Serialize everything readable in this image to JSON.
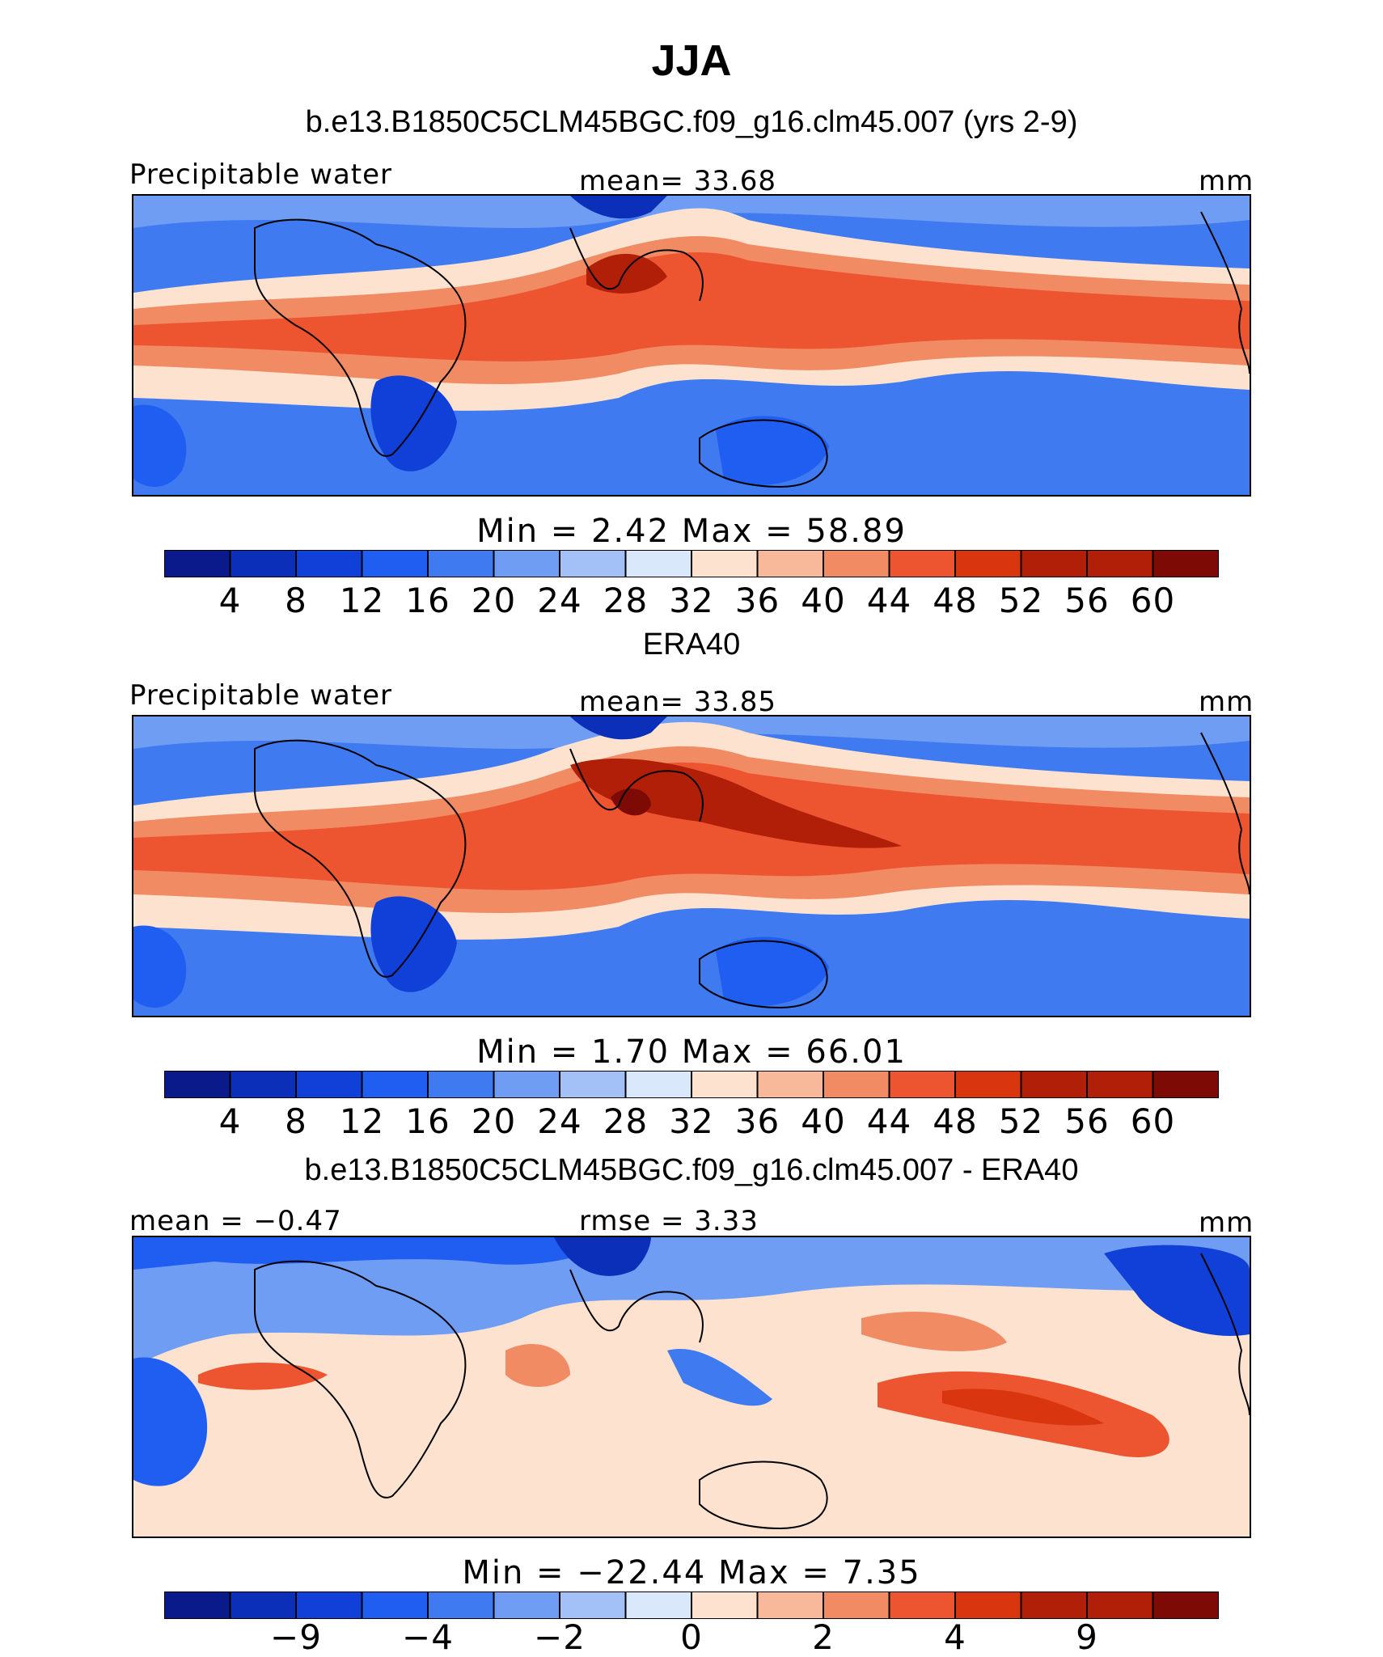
{
  "page_title": "JJA",
  "colors": {
    "palette": [
      "#0a1a8a",
      "#0b2fb8",
      "#1040d8",
      "#1f5ef0",
      "#3f7af0",
      "#6f9df4",
      "#a3c1f7",
      "#d9e8fb",
      "#fde3cf",
      "#f7b999",
      "#f18b63",
      "#ec5530",
      "#d9360f",
      "#b11f08",
      "#7d0a04"
    ]
  },
  "chart_data": [
    {
      "type": "heatmap",
      "panel_title": "b.e13.B1850C5CLM45BGC.f09_g16.clm45.007 (yrs 2-9)",
      "left_label": "Precipitable water",
      "center_label": "mean=   33.68",
      "units": "mm",
      "stats": "Min  =    2.42  Max  =   58.89",
      "colorbar_levels": [
        "4",
        "8",
        "12",
        "16",
        "20",
        "24",
        "28",
        "32",
        "36",
        "40",
        "44",
        "48",
        "52",
        "56",
        "60"
      ]
    },
    {
      "type": "heatmap",
      "panel_title": "ERA40",
      "left_label": "Precipitable water",
      "center_label": "mean=   33.85",
      "units": "mm",
      "stats": "Min  =    1.70  Max  =   66.01",
      "colorbar_levels": [
        "4",
        "8",
        "12",
        "16",
        "20",
        "24",
        "28",
        "32",
        "36",
        "40",
        "44",
        "48",
        "52",
        "56",
        "60"
      ]
    },
    {
      "type": "heatmap",
      "panel_title": "b.e13.B1850C5CLM45BGC.f09_g16.clm45.007 - ERA40",
      "left_label": "mean  =   −0.47",
      "center_label": "rmse  =    3.33",
      "units": "mm",
      "stats": "Min  = −22.44  Max  =    7.35",
      "colorbar_levels": [
        "−9",
        "−4",
        "−2",
        "0",
        "2",
        "4",
        "9"
      ]
    }
  ]
}
